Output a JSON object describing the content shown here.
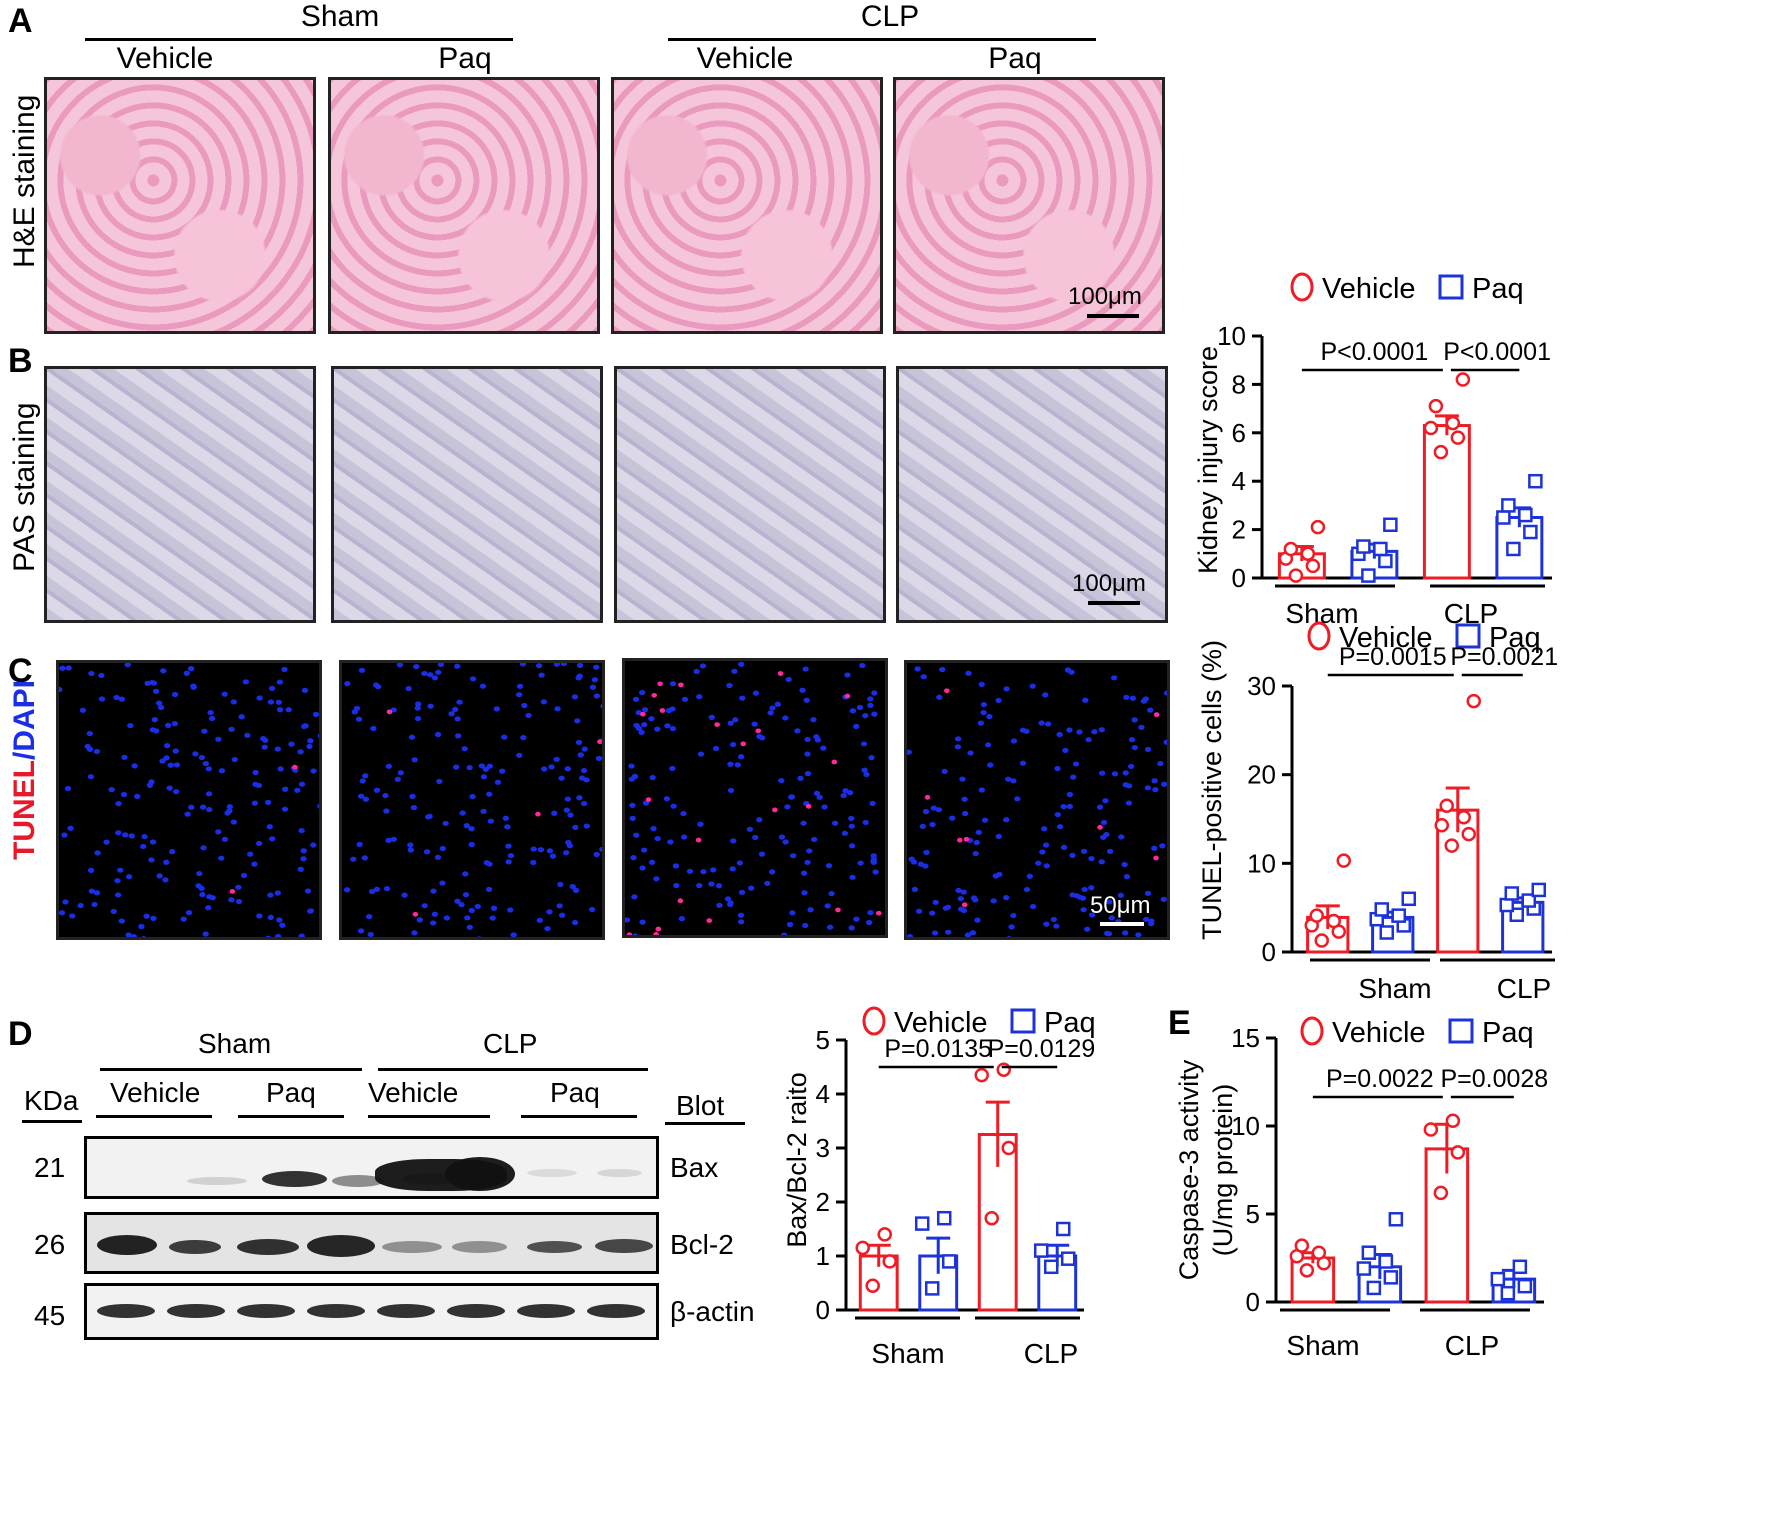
{
  "panels": {
    "A": "A",
    "B": "B",
    "C": "C",
    "D": "D",
    "E": "E"
  },
  "group_headers": {
    "sham": "Sham",
    "clp": "CLP",
    "vehicle": "Vehicle",
    "paq": "Paq"
  },
  "stain_labels": {
    "he": "H&E staining",
    "pas": "PAS staining",
    "tunel_a": "TUNEL",
    "tunel_b": "/DAPI"
  },
  "scale_bars": {
    "he": "100μm",
    "pas": "100μm",
    "tunel": "50μm"
  },
  "blot": {
    "kda_header": "KDa",
    "blot_header": "Blot",
    "rows": [
      {
        "kda": "21",
        "name": "Bax"
      },
      {
        "kda": "26",
        "name": "Bcl-2"
      },
      {
        "kda": "45",
        "name": "β-actin"
      }
    ],
    "header_sham": "Sham",
    "header_clp": "CLP",
    "lanes": [
      "Vehicle",
      "Paq",
      "Vehicle",
      "Paq"
    ]
  },
  "colors": {
    "vehicle": "#ee1c25",
    "paq": "#1c33d8",
    "tunel_red": "#e8182a",
    "dapi_blue": "#1a2ee6"
  },
  "chart_data": [
    {
      "id": "kidney",
      "type": "bar",
      "legend": [
        "Vehicle",
        "Paq"
      ],
      "ylabel": "Kidney injury score",
      "ylim": [
        0,
        10
      ],
      "yticks": [
        "0",
        "2",
        "4",
        "6",
        "8",
        "10"
      ],
      "groups": [
        "Sham",
        "CLP"
      ],
      "series": [
        {
          "name": "Vehicle",
          "means": [
            1.0,
            6.3
          ],
          "err": [
            0.3,
            0.4
          ],
          "points": [
            [
              0.1,
              0.5,
              0.8,
              1.0,
              1.2,
              2.1
            ],
            [
              5.2,
              5.8,
              6.2,
              6.4,
              7.1,
              8.2
            ]
          ]
        },
        {
          "name": "Paq",
          "means": [
            1.1,
            2.5
          ],
          "err": [
            0.3,
            0.4
          ],
          "points": [
            [
              0.1,
              0.7,
              1.0,
              1.2,
              1.3,
              2.2
            ],
            [
              1.2,
              1.9,
              2.5,
              2.6,
              3.0,
              4.0
            ]
          ]
        }
      ],
      "pvalues": [
        "P<0.0001",
        "P<0.0001"
      ]
    },
    {
      "id": "tunel",
      "type": "bar",
      "legend": [
        "Vehicle",
        "Paq"
      ],
      "ylabel": "TUNEL-positive cells (%)",
      "ylim": [
        0,
        30
      ],
      "yticks": [
        "0",
        "10",
        "20",
        "30"
      ],
      "groups": [
        "Sham",
        "CLP"
      ],
      "series": [
        {
          "name": "Vehicle",
          "means": [
            3.9,
            16.0
          ],
          "err": [
            1.3,
            2.5
          ],
          "points": [
            [
              1.3,
              2.3,
              3.0,
              3.5,
              4.1,
              10.3
            ],
            [
              12.0,
              13.3,
              14.3,
              15.2,
              16.5,
              28.3
            ]
          ]
        },
        {
          "name": "Paq",
          "means": [
            3.9,
            5.6
          ],
          "err": [
            0.6,
            0.5
          ],
          "points": [
            [
              2.2,
              3.0,
              3.7,
              4.1,
              4.8,
              6.0
            ],
            [
              4.2,
              4.9,
              5.3,
              5.8,
              6.6,
              7.0
            ]
          ]
        }
      ],
      "pvalues": [
        "P=0.0015",
        "P=0.0021"
      ]
    },
    {
      "id": "baxbcl",
      "type": "bar",
      "legend": [
        "Vehicle",
        "Paq"
      ],
      "ylabel": "Bax/Bcl-2 raito",
      "ylim": [
        0,
        5
      ],
      "yticks": [
        "0",
        "1",
        "2",
        "3",
        "4",
        "5"
      ],
      "groups": [
        "Sham",
        "CLP"
      ],
      "series": [
        {
          "name": "Vehicle",
          "means": [
            1.0,
            3.25
          ],
          "err": [
            0.2,
            0.6
          ],
          "points": [
            [
              0.45,
              0.9,
              1.15,
              1.4
            ],
            [
              1.7,
              3.0,
              4.35,
              4.45
            ]
          ]
        },
        {
          "name": "Paq",
          "means": [
            1.0,
            1.0
          ],
          "err": [
            0.33,
            0.2
          ],
          "points": [
            [
              0.4,
              0.9,
              1.6,
              1.7
            ],
            [
              0.8,
              0.95,
              1.1,
              1.5
            ]
          ]
        }
      ],
      "pvalues": [
        "P=0.0135",
        "P=0.0129"
      ]
    },
    {
      "id": "caspase",
      "type": "bar",
      "legend": [
        "Vehicle",
        "Paq"
      ],
      "ylabel": "Caspase-3 activity",
      "ylabel2": "(U/mg protein)",
      "ylim": [
        0,
        15
      ],
      "yticks": [
        "0",
        "5",
        "10",
        "15"
      ],
      "groups": [
        "Sham",
        "CLP"
      ],
      "series": [
        {
          "name": "Vehicle",
          "means": [
            2.5,
            8.7
          ],
          "err": [
            0.3,
            1.4
          ],
          "points": [
            [
              1.8,
              2.2,
              2.6,
              2.8,
              3.2
            ],
            [
              6.2,
              8.5,
              9.8,
              10.3
            ]
          ]
        },
        {
          "name": "Paq",
          "means": [
            2.0,
            1.3
          ],
          "err": [
            0.7,
            0.5
          ],
          "points": [
            [
              0.8,
              1.4,
              1.9,
              2.3,
              2.8,
              4.7
            ],
            [
              0.5,
              0.9,
              1.3,
              2.0
            ]
          ]
        }
      ],
      "pvalues": [
        "P=0.0022",
        "P=0.0028"
      ]
    }
  ]
}
